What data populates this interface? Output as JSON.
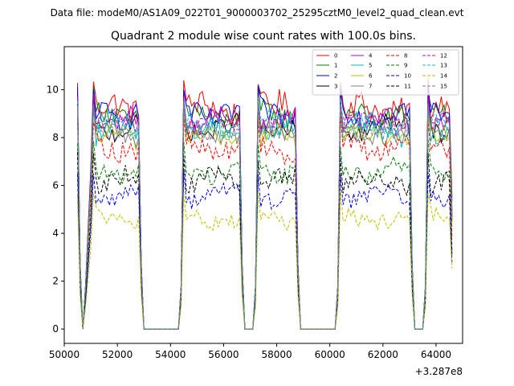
{
  "chart_data": {
    "type": "line",
    "suptitle": "Data file: modeM0/AS1A09_022T01_9000003702_25295cztM0_level2_quad_clean.evt",
    "title": "Quadrant 2 module wise count rates with 100.0s bins.",
    "xlabel": "",
    "ylabel": "",
    "x_offset_label": "+3.287e8",
    "xlim": [
      50000,
      65000
    ],
    "ylim": [
      -0.6,
      11.8
    ],
    "x_ticks": [
      50000,
      52000,
      54000,
      56000,
      58000,
      60000,
      62000,
      64000
    ],
    "x_tick_labels": [
      "50000",
      "52000",
      "54000",
      "56000",
      "58000",
      "60000",
      "62000",
      "64000"
    ],
    "y_ticks": [
      0,
      2,
      4,
      6,
      8,
      10
    ],
    "y_tick_labels": [
      "0",
      "2",
      "4",
      "6",
      "8",
      "10"
    ],
    "grid": false,
    "legend_position": "top-right",
    "x_start": 50500,
    "x_step": 100,
    "segments": [
      {
        "type": "data",
        "start": 50500,
        "end": 50600
      },
      {
        "type": "ramp",
        "start": 50600,
        "end": 50700
      },
      {
        "type": "zero",
        "start": 50700,
        "end": 50800
      },
      {
        "type": "ramp",
        "start": 50800,
        "end": 51100
      },
      {
        "type": "data",
        "start": 51100,
        "end": 52900
      },
      {
        "type": "ramp",
        "start": 52900,
        "end": 53000
      },
      {
        "type": "zero",
        "start": 53000,
        "end": 54400
      },
      {
        "type": "ramp",
        "start": 54400,
        "end": 54500
      },
      {
        "type": "data",
        "start": 54500,
        "end": 56700
      },
      {
        "type": "ramp",
        "start": 56700,
        "end": 56800
      },
      {
        "type": "zero",
        "start": 56800,
        "end": 57200
      },
      {
        "type": "ramp",
        "start": 57200,
        "end": 57300
      },
      {
        "type": "data",
        "start": 57300,
        "end": 58800
      },
      {
        "type": "ramp",
        "start": 58800,
        "end": 58900
      },
      {
        "type": "zero",
        "start": 58900,
        "end": 60300
      },
      {
        "type": "ramp",
        "start": 60300,
        "end": 60400
      },
      {
        "type": "data",
        "start": 60400,
        "end": 63100
      },
      {
        "type": "ramp",
        "start": 63100,
        "end": 63200
      },
      {
        "type": "zero",
        "start": 63200,
        "end": 63600
      },
      {
        "type": "ramp",
        "start": 63600,
        "end": 63700
      },
      {
        "type": "data",
        "start": 63700,
        "end": 64500
      },
      {
        "type": "drop",
        "start": 64500,
        "end": 64600
      }
    ],
    "series": [
      {
        "name": "0",
        "color": "#ff0000",
        "dashed": false,
        "base": 9.2,
        "peak": 10.4,
        "amp": 0.6,
        "drop": 0.4
      },
      {
        "name": "1",
        "color": "#008000",
        "dashed": false,
        "base": 8.9,
        "peak": 10.0,
        "amp": 0.5,
        "drop": 0.4
      },
      {
        "name": "2",
        "color": "#0000ff",
        "dashed": false,
        "base": 9.0,
        "peak": 10.0,
        "amp": 0.5,
        "drop": 0.45
      },
      {
        "name": "3",
        "color": "#000000",
        "dashed": false,
        "base": 8.4,
        "peak": 9.4,
        "amp": 0.4,
        "drop": 0.45
      },
      {
        "name": "4",
        "color": "#bf00bf",
        "dashed": false,
        "base": 8.7,
        "peak": 9.7,
        "amp": 0.4,
        "drop": 0.45
      },
      {
        "name": "5",
        "color": "#00bfbf",
        "dashed": false,
        "base": 8.3,
        "peak": 9.4,
        "amp": 0.5,
        "drop": 0.45
      },
      {
        "name": "6",
        "color": "#bfbf00",
        "dashed": false,
        "base": 8.0,
        "peak": 9.0,
        "amp": 0.4,
        "drop": 0.45
      },
      {
        "name": "7",
        "color": "#808080",
        "dashed": false,
        "base": 8.2,
        "peak": 9.2,
        "amp": 0.4,
        "drop": 0.45
      },
      {
        "name": "8",
        "color": "#ff0000",
        "dashed": true,
        "base": 7.6,
        "peak": 8.8,
        "amp": 0.5,
        "drop": 0.5
      },
      {
        "name": "9",
        "color": "#008000",
        "dashed": true,
        "base": 6.6,
        "peak": 7.8,
        "amp": 0.4,
        "drop": 0.5
      },
      {
        "name": "10",
        "color": "#0000ff",
        "dashed": true,
        "base": 5.6,
        "peak": 6.6,
        "amp": 0.35,
        "drop": 0.5
      },
      {
        "name": "11",
        "color": "#000000",
        "dashed": true,
        "base": 6.2,
        "peak": 7.2,
        "amp": 0.4,
        "drop": 0.5
      },
      {
        "name": "12",
        "color": "#bf00bf",
        "dashed": true,
        "base": 8.6,
        "peak": 9.6,
        "amp": 0.4,
        "drop": 0.45
      },
      {
        "name": "13",
        "color": "#00bfbf",
        "dashed": true,
        "base": 8.5,
        "peak": 9.5,
        "amp": 0.4,
        "drop": 0.45
      },
      {
        "name": "14",
        "color": "#bfbf00",
        "dashed": true,
        "base": 4.6,
        "peak": 5.6,
        "amp": 0.35,
        "drop": 0.45
      },
      {
        "name": "15",
        "color": "#808080",
        "dashed": true,
        "base": 8.4,
        "peak": 9.4,
        "amp": 0.4,
        "drop": 0.45
      }
    ]
  }
}
